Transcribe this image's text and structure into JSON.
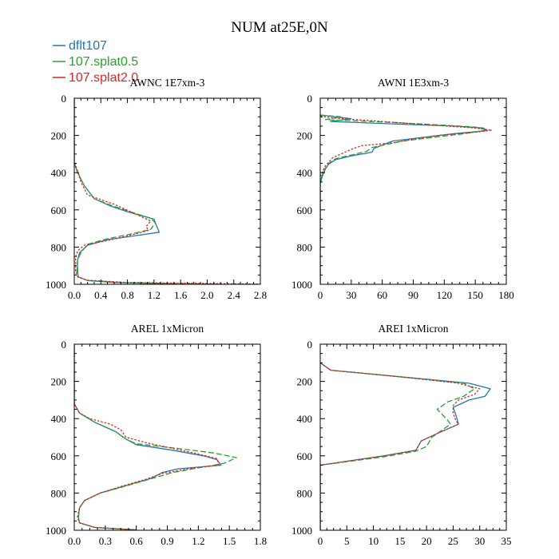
{
  "figure_title": "NUM at25E,0N",
  "legend": [
    {
      "label": "dflt107",
      "color": "#1f77b4"
    },
    {
      "label": "107.splat0.5",
      "color": "#2ca02c"
    },
    {
      "label": "107.splat2.0",
      "color": "#d62728"
    }
  ],
  "chart_data": [
    {
      "type": "line",
      "title": "AWNC  1E7xm-3",
      "xlim": [
        0,
        2.8
      ],
      "ylim": [
        1000,
        0
      ],
      "y_inverted": true,
      "xticks": [
        0,
        0.4,
        0.8,
        1.2,
        1.6,
        2.0,
        2.4,
        2.8
      ],
      "xtick_labels": [
        "0.0",
        "0.4",
        "0.8",
        "1.2",
        "1.6",
        "2.0",
        "2.4",
        "2.8"
      ],
      "yticks": [
        0,
        200,
        400,
        600,
        800,
        1000
      ],
      "series": [
        {
          "name": "dflt107",
          "color": "#1f77b4",
          "dash": "solid",
          "points": [
            [
              0,
              0
            ],
            [
              0,
              350
            ],
            [
              0.05,
              400
            ],
            [
              0.15,
              470
            ],
            [
              0.3,
              540
            ],
            [
              0.55,
              580
            ],
            [
              0.8,
              610
            ],
            [
              1.2,
              650
            ],
            [
              1.23,
              680
            ],
            [
              1.28,
              720
            ],
            [
              0.9,
              740
            ],
            [
              0.5,
              760
            ],
            [
              0.2,
              790
            ],
            [
              0.08,
              830
            ],
            [
              0.05,
              870
            ],
            [
              0.05,
              930
            ],
            [
              0.06,
              960
            ],
            [
              0.2,
              980
            ],
            [
              0.6,
              990
            ],
            [
              1.5,
              998
            ]
          ]
        },
        {
          "name": "107.splat0.5",
          "color": "#2ca02c",
          "dash": "dashed",
          "points": [
            [
              0,
              0
            ],
            [
              0,
              350
            ],
            [
              0.05,
              400
            ],
            [
              0.15,
              470
            ],
            [
              0.3,
              540
            ],
            [
              0.55,
              575
            ],
            [
              0.8,
              605
            ],
            [
              1.15,
              645
            ],
            [
              1.22,
              670
            ],
            [
              1.15,
              705
            ],
            [
              0.85,
              730
            ],
            [
              0.5,
              755
            ],
            [
              0.2,
              785
            ],
            [
              0.1,
              830
            ],
            [
              0.05,
              870
            ],
            [
              0.04,
              930
            ],
            [
              0.05,
              960
            ],
            [
              0.2,
              980
            ],
            [
              0.8,
              992
            ],
            [
              2.2,
              999
            ]
          ]
        },
        {
          "name": "107.splat2.0",
          "color": "#d62728",
          "dash": "dotted",
          "points": [
            [
              0,
              0
            ],
            [
              0,
              340
            ],
            [
              0.05,
              390
            ],
            [
              0.1,
              450
            ],
            [
              0.2,
              520
            ],
            [
              0.4,
              545
            ],
            [
              0.6,
              570
            ],
            [
              0.85,
              610
            ],
            [
              1.15,
              660
            ],
            [
              1.08,
              690
            ],
            [
              1.12,
              710
            ],
            [
              0.8,
              740
            ],
            [
              0.5,
              765
            ],
            [
              0.15,
              790
            ],
            [
              0.05,
              820
            ],
            [
              0.02,
              860
            ],
            [
              0.02,
              930
            ],
            [
              0.05,
              960
            ],
            [
              0.2,
              978
            ],
            [
              0.8,
              990
            ],
            [
              2.8,
              999
            ]
          ]
        }
      ]
    },
    {
      "type": "line",
      "title": "AWNI  1E3xm-3",
      "xlim": [
        0,
        180
      ],
      "ylim": [
        1000,
        0
      ],
      "y_inverted": true,
      "xticks": [
        0,
        30,
        60,
        90,
        120,
        150,
        180
      ],
      "xtick_labels": [
        "0",
        "30",
        "60",
        "90",
        "120",
        "150",
        "180"
      ],
      "yticks": [
        0,
        200,
        400,
        600,
        800,
        1000
      ],
      "series": [
        {
          "name": "dflt107",
          "color": "#1f77b4",
          "dash": "solid",
          "points": [
            [
              0,
              90
            ],
            [
              30,
              110
            ],
            [
              10,
              125
            ],
            [
              80,
              140
            ],
            [
              130,
              150
            ],
            [
              158,
              160
            ],
            [
              160,
              175
            ],
            [
              130,
              190
            ],
            [
              100,
              210
            ],
            [
              70,
              230
            ],
            [
              52,
              270
            ],
            [
              50,
              290
            ],
            [
              30,
              310
            ],
            [
              15,
              330
            ],
            [
              8,
              355
            ],
            [
              5,
              380
            ],
            [
              2,
              420
            ],
            [
              0,
              460
            ],
            [
              0,
              1000
            ]
          ]
        },
        {
          "name": "107.splat0.5",
          "color": "#2ca02c",
          "dash": "dashed",
          "points": [
            [
              0,
              90
            ],
            [
              20,
              100
            ],
            [
              5,
              115
            ],
            [
              70,
              130
            ],
            [
              120,
              145
            ],
            [
              150,
              155
            ],
            [
              162,
              170
            ],
            [
              140,
              190
            ],
            [
              110,
              210
            ],
            [
              80,
              230
            ],
            [
              50,
              265
            ],
            [
              45,
              285
            ],
            [
              30,
              305
            ],
            [
              15,
              325
            ],
            [
              8,
              350
            ],
            [
              5,
              375
            ],
            [
              2,
              410
            ],
            [
              0,
              450
            ],
            [
              0,
              1000
            ]
          ]
        },
        {
          "name": "107.splat2.0",
          "color": "#d62728",
          "dash": "dotted",
          "points": [
            [
              0,
              95
            ],
            [
              10,
              105
            ],
            [
              60,
              125
            ],
            [
              110,
              145
            ],
            [
              150,
              160
            ],
            [
              166,
              172
            ],
            [
              145,
              185
            ],
            [
              115,
              200
            ],
            [
              90,
              220
            ],
            [
              70,
              240
            ],
            [
              40,
              255
            ],
            [
              30,
              275
            ],
            [
              20,
              300
            ],
            [
              12,
              320
            ],
            [
              8,
              345
            ],
            [
              4,
              370
            ],
            [
              2,
              400
            ],
            [
              0,
              420
            ],
            [
              0,
              1000
            ]
          ]
        }
      ]
    },
    {
      "type": "line",
      "title": "AREL  1xMicron",
      "xlim": [
        0,
        1.8
      ],
      "ylim": [
        1000,
        0
      ],
      "y_inverted": true,
      "xticks": [
        0,
        0.3,
        0.6,
        0.9,
        1.2,
        1.5,
        1.8
      ],
      "xtick_labels": [
        "0.0",
        "0.3",
        "0.6",
        "0.9",
        "1.2",
        "1.5",
        "1.8"
      ],
      "yticks": [
        0,
        200,
        400,
        600,
        800,
        1000
      ],
      "series": [
        {
          "name": "dflt107",
          "color": "#1f77b4",
          "dash": "solid",
          "points": [
            [
              0,
              0
            ],
            [
              0,
              320
            ],
            [
              0.05,
              370
            ],
            [
              0.2,
              420
            ],
            [
              0.4,
              470
            ],
            [
              0.5,
              510
            ],
            [
              0.6,
              540
            ],
            [
              0.95,
              570
            ],
            [
              1.25,
              600
            ],
            [
              1.38,
              620
            ],
            [
              1.42,
              650
            ],
            [
              1.0,
              670
            ],
            [
              0.85,
              690
            ],
            [
              0.75,
              720
            ],
            [
              0.5,
              760
            ],
            [
              0.25,
              800
            ],
            [
              0.1,
              840
            ],
            [
              0.05,
              880
            ],
            [
              0.04,
              930
            ],
            [
              0.05,
              960
            ],
            [
              0.2,
              985
            ],
            [
              0.6,
              998
            ]
          ]
        },
        {
          "name": "107.splat0.5",
          "color": "#2ca02c",
          "dash": "dashed",
          "points": [
            [
              0,
              0
            ],
            [
              0,
              320
            ],
            [
              0.05,
              370
            ],
            [
              0.2,
              420
            ],
            [
              0.4,
              470
            ],
            [
              0.5,
              510
            ],
            [
              0.6,
              535
            ],
            [
              1.0,
              560
            ],
            [
              1.35,
              585
            ],
            [
              1.57,
              610
            ],
            [
              1.45,
              640
            ],
            [
              1.2,
              665
            ],
            [
              0.95,
              690
            ],
            [
              0.7,
              730
            ],
            [
              0.45,
              770
            ],
            [
              0.25,
              800
            ],
            [
              0.1,
              840
            ],
            [
              0.05,
              880
            ],
            [
              0.04,
              930
            ],
            [
              0.05,
              960
            ],
            [
              0.2,
              985
            ],
            [
              0.6,
              998
            ]
          ]
        },
        {
          "name": "107.splat2.0",
          "color": "#d62728",
          "dash": "dotted",
          "points": [
            [
              0,
              0
            ],
            [
              0,
              320
            ],
            [
              0.05,
              370
            ],
            [
              0.15,
              400
            ],
            [
              0.35,
              430
            ],
            [
              0.45,
              460
            ],
            [
              0.5,
              500
            ],
            [
              0.7,
              530
            ],
            [
              0.95,
              560
            ],
            [
              1.2,
              590
            ],
            [
              1.38,
              615
            ],
            [
              1.4,
              650
            ],
            [
              1.1,
              670
            ],
            [
              0.85,
              695
            ],
            [
              0.7,
              725
            ],
            [
              0.45,
              765
            ],
            [
              0.25,
              800
            ],
            [
              0.1,
              840
            ],
            [
              0.05,
              880
            ],
            [
              0.03,
              930
            ],
            [
              0.05,
              960
            ],
            [
              0.2,
              985
            ],
            [
              0.6,
              998
            ]
          ]
        }
      ]
    },
    {
      "type": "line",
      "title": "AREI  1xMicron",
      "xlim": [
        0,
        35
      ],
      "ylim": [
        1000,
        0
      ],
      "y_inverted": true,
      "xticks": [
        0,
        5,
        10,
        15,
        20,
        25,
        30,
        35
      ],
      "xtick_labels": [
        "0",
        "5",
        "10",
        "15",
        "20",
        "25",
        "30",
        "35"
      ],
      "yticks": [
        0,
        200,
        400,
        600,
        800,
        1000
      ],
      "series": [
        {
          "name": "dflt107",
          "color": "#1f77b4",
          "dash": "solid",
          "points": [
            [
              0,
              100
            ],
            [
              2,
              140
            ],
            [
              15,
              175
            ],
            [
              28,
              210
            ],
            [
              32,
              240
            ],
            [
              31,
              280
            ],
            [
              28,
              300
            ],
            [
              25,
              340
            ],
            [
              25.5,
              380
            ],
            [
              26,
              430
            ],
            [
              22,
              480
            ],
            [
              19,
              520
            ],
            [
              18,
              570
            ],
            [
              12,
              600
            ],
            [
              6,
              625
            ],
            [
              0,
              650
            ],
            [
              0,
              1000
            ]
          ]
        },
        {
          "name": "107.splat0.5",
          "color": "#2ca02c",
          "dash": "dashed",
          "points": [
            [
              0,
              100
            ],
            [
              2,
              140
            ],
            [
              15,
              175
            ],
            [
              27,
              210
            ],
            [
              29,
              240
            ],
            [
              27,
              280
            ],
            [
              24,
              310
            ],
            [
              22,
              350
            ],
            [
              23,
              380
            ],
            [
              24,
              410
            ],
            [
              24.5,
              430
            ],
            [
              21,
              500
            ],
            [
              20,
              550
            ],
            [
              18,
              575
            ],
            [
              12,
              605
            ],
            [
              6,
              628
            ],
            [
              0,
              650
            ],
            [
              0,
              1000
            ]
          ]
        },
        {
          "name": "107.splat2.0",
          "color": "#d62728",
          "dash": "dotted",
          "points": [
            [
              0,
              100
            ],
            [
              2,
              140
            ],
            [
              15,
              175
            ],
            [
              26,
              210
            ],
            [
              30,
              240
            ],
            [
              29,
              270
            ],
            [
              26,
              300
            ],
            [
              25,
              330
            ],
            [
              25,
              370
            ],
            [
              25.5,
              410
            ],
            [
              26,
              430
            ],
            [
              22,
              480
            ],
            [
              19,
              520
            ],
            [
              18,
              570
            ],
            [
              12,
              600
            ],
            [
              6,
              625
            ],
            [
              0,
              650
            ],
            [
              0,
              1000
            ]
          ]
        }
      ]
    }
  ]
}
